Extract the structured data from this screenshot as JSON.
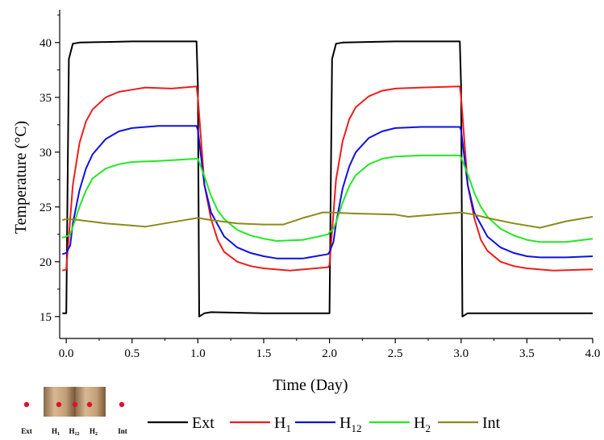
{
  "chart_data": {
    "type": "line",
    "title": "",
    "xlabel": "Time (Day)",
    "ylabel": "Temperature (°C)",
    "xlim": [
      -0.05,
      4.0
    ],
    "ylim": [
      13.0,
      43.0
    ],
    "x_ticks": [
      0.0,
      0.5,
      1.0,
      1.5,
      2.0,
      2.5,
      3.0,
      3.5,
      4.0
    ],
    "x_tick_labels": [
      "0.0",
      "0.5",
      "1.0",
      "1.5",
      "2.0",
      "2.5",
      "3.0",
      "3.5",
      "4.0"
    ],
    "y_ticks": [
      15,
      20,
      25,
      30,
      35,
      40
    ],
    "y_tick_labels": [
      "15",
      "20",
      "25",
      "30",
      "35",
      "40"
    ],
    "grid": false,
    "legend_position": "bottom",
    "series": [
      {
        "name": "Ext",
        "label_main": "Ext",
        "label_sub": "",
        "color": "#000000",
        "x": [
          -0.03,
          0.0,
          0.02,
          0.05,
          0.1,
          0.5,
          0.9,
          0.99,
          1.0,
          1.01,
          1.05,
          1.1,
          1.5,
          1.98,
          2.0,
          2.02,
          2.05,
          2.1,
          2.5,
          2.99,
          3.0,
          3.01,
          3.05,
          3.1,
          3.5,
          4.0
        ],
        "y": [
          15.3,
          15.3,
          38.5,
          39.9,
          40.0,
          40.1,
          40.1,
          40.1,
          36.0,
          15.0,
          15.3,
          15.4,
          15.3,
          15.3,
          15.3,
          38.5,
          39.9,
          40.0,
          40.1,
          40.1,
          36.0,
          15.0,
          15.3,
          15.3,
          15.3,
          15.3
        ]
      },
      {
        "name": "H1",
        "label_main": "H",
        "label_sub": "1",
        "color": "#ee1c1c",
        "x": [
          -0.03,
          0.0,
          0.05,
          0.1,
          0.15,
          0.2,
          0.3,
          0.4,
          0.5,
          0.6,
          0.8,
          0.99,
          1.0,
          1.05,
          1.1,
          1.15,
          1.2,
          1.3,
          1.4,
          1.5,
          1.7,
          1.99,
          2.0,
          2.05,
          2.1,
          2.15,
          2.2,
          2.3,
          2.4,
          2.5,
          2.7,
          2.99,
          3.0,
          3.05,
          3.1,
          3.15,
          3.2,
          3.3,
          3.4,
          3.5,
          3.7,
          4.0
        ],
        "y": [
          19.2,
          19.3,
          27.0,
          30.8,
          32.8,
          33.9,
          35.0,
          35.5,
          35.7,
          35.9,
          35.8,
          36.0,
          35.0,
          27.0,
          23.9,
          22.0,
          20.9,
          20.0,
          19.6,
          19.4,
          19.2,
          19.5,
          19.7,
          27.5,
          31.0,
          33.0,
          34.1,
          35.1,
          35.6,
          35.8,
          35.9,
          36.0,
          35.0,
          27.0,
          24.0,
          22.0,
          21.0,
          20.0,
          19.6,
          19.4,
          19.2,
          19.3
        ]
      },
      {
        "name": "H12",
        "label_main": "H",
        "label_sub": "12",
        "color": "#1010e0",
        "x": [
          -0.03,
          0.0,
          0.03,
          0.05,
          0.1,
          0.15,
          0.2,
          0.3,
          0.4,
          0.5,
          0.7,
          0.99,
          1.0,
          1.05,
          1.1,
          1.2,
          1.3,
          1.4,
          1.5,
          1.6,
          1.8,
          1.99,
          2.0,
          2.03,
          2.05,
          2.1,
          2.15,
          2.2,
          2.3,
          2.4,
          2.5,
          2.7,
          2.99,
          3.0,
          3.05,
          3.1,
          3.2,
          3.3,
          3.4,
          3.5,
          3.6,
          3.8,
          4.0
        ],
        "y": [
          20.7,
          20.8,
          21.5,
          23.5,
          26.5,
          28.5,
          29.8,
          31.2,
          31.9,
          32.2,
          32.4,
          32.4,
          32.0,
          27.0,
          24.5,
          22.3,
          21.3,
          20.8,
          20.5,
          20.3,
          20.3,
          20.7,
          20.9,
          21.8,
          23.5,
          26.7,
          28.7,
          30.0,
          31.3,
          31.9,
          32.2,
          32.3,
          32.3,
          32.0,
          27.0,
          24.5,
          22.3,
          21.3,
          20.8,
          20.5,
          20.4,
          20.4,
          20.5
        ]
      },
      {
        "name": "H2",
        "label_main": "H",
        "label_sub": "2",
        "color": "#22e822",
        "x": [
          -0.03,
          0.0,
          0.03,
          0.05,
          0.1,
          0.15,
          0.2,
          0.3,
          0.4,
          0.5,
          0.7,
          0.99,
          1.0,
          1.05,
          1.1,
          1.15,
          1.2,
          1.3,
          1.4,
          1.5,
          1.6,
          1.8,
          1.99,
          2.0,
          2.03,
          2.05,
          2.1,
          2.15,
          2.2,
          2.3,
          2.4,
          2.5,
          2.7,
          2.99,
          3.0,
          3.05,
          3.1,
          3.15,
          3.2,
          3.3,
          3.4,
          3.5,
          3.6,
          3.8,
          4.0
        ],
        "y": [
          22.2,
          22.3,
          22.5,
          23.2,
          25.0,
          26.5,
          27.6,
          28.5,
          28.9,
          29.1,
          29.2,
          29.4,
          29.4,
          27.8,
          26.0,
          24.7,
          23.9,
          22.9,
          22.4,
          22.1,
          21.9,
          22.0,
          22.5,
          22.7,
          23.0,
          23.6,
          25.4,
          26.9,
          27.9,
          28.9,
          29.4,
          29.6,
          29.7,
          29.7,
          29.5,
          28.0,
          26.3,
          25.0,
          24.1,
          23.0,
          22.4,
          22.0,
          21.8,
          21.8,
          22.1
        ]
      },
      {
        "name": "Int",
        "label_main": "Int",
        "label_sub": "",
        "color": "#8b8b1a",
        "x": [
          -0.03,
          0.0,
          0.1,
          0.3,
          0.5,
          0.6,
          0.8,
          1.0,
          1.1,
          1.3,
          1.5,
          1.65,
          1.8,
          1.95,
          2.0,
          2.2,
          2.5,
          2.6,
          2.8,
          3.0,
          3.1,
          3.2,
          3.4,
          3.6,
          3.8,
          4.0
        ],
        "y": [
          23.8,
          23.9,
          23.8,
          23.5,
          23.3,
          23.2,
          23.6,
          24.0,
          23.8,
          23.5,
          23.4,
          23.4,
          24.0,
          24.5,
          24.5,
          24.4,
          24.3,
          24.1,
          24.3,
          24.5,
          24.3,
          24.0,
          23.5,
          23.1,
          23.7,
          24.1
        ]
      }
    ]
  },
  "diagram": {
    "labels": [
      {
        "main": "Ext",
        "sub": ""
      },
      {
        "main": "H",
        "sub": "1"
      },
      {
        "main": "H",
        "sub": "12"
      },
      {
        "main": "H",
        "sub": "2"
      },
      {
        "main": "Int",
        "sub": ""
      }
    ],
    "wall_color": "#b5916a",
    "dot_color": "#dd1133"
  }
}
